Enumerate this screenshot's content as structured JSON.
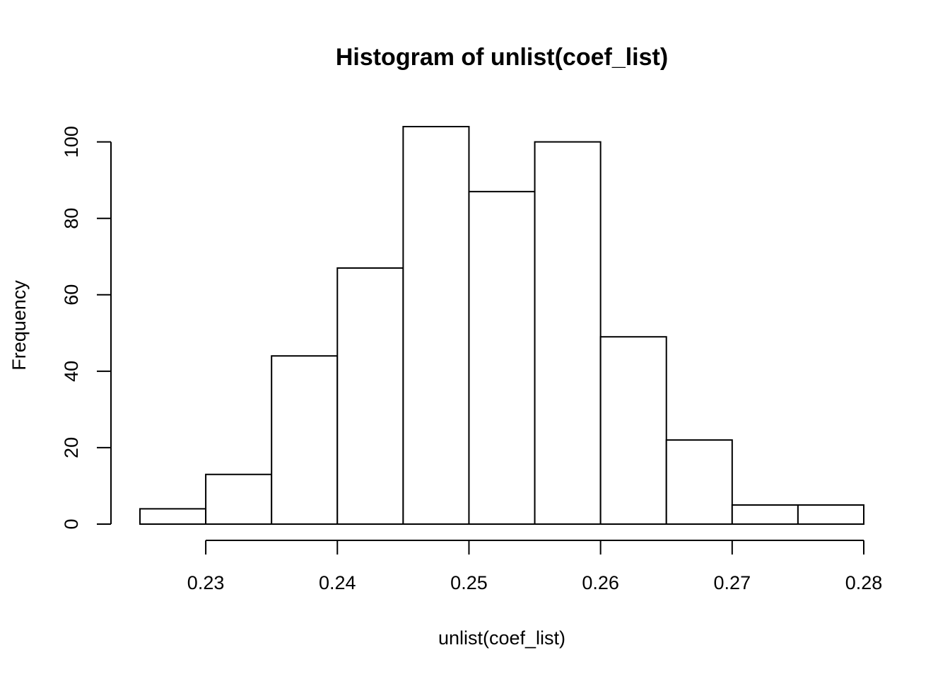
{
  "chart_data": {
    "type": "bar",
    "title": "Histogram of unlist(coef_list)",
    "xlabel": "unlist(coef_list)",
    "ylabel": "Frequency",
    "bins": [
      {
        "start": 0.225,
        "end": 0.23,
        "count": 4
      },
      {
        "start": 0.23,
        "end": 0.235,
        "count": 13
      },
      {
        "start": 0.235,
        "end": 0.24,
        "count": 44
      },
      {
        "start": 0.24,
        "end": 0.245,
        "count": 67
      },
      {
        "start": 0.245,
        "end": 0.25,
        "count": 104
      },
      {
        "start": 0.25,
        "end": 0.255,
        "count": 87
      },
      {
        "start": 0.255,
        "end": 0.26,
        "count": 100
      },
      {
        "start": 0.26,
        "end": 0.265,
        "count": 49
      },
      {
        "start": 0.265,
        "end": 0.27,
        "count": 22
      },
      {
        "start": 0.27,
        "end": 0.275,
        "count": 5
      },
      {
        "start": 0.275,
        "end": 0.28,
        "count": 5
      }
    ],
    "x_ticks": [
      0.23,
      0.24,
      0.25,
      0.26,
      0.27,
      0.28
    ],
    "x_tick_labels": [
      "0.23",
      "0.24",
      "0.25",
      "0.26",
      "0.27",
      "0.28"
    ],
    "y_ticks": [
      0,
      20,
      40,
      60,
      80,
      100
    ],
    "y_tick_labels": [
      "0",
      "20",
      "40",
      "60",
      "80",
      "100"
    ],
    "xlim": [
      0.225,
      0.28
    ],
    "ylim": [
      0,
      104
    ],
    "grid": false,
    "legend": "none",
    "bar_fill": "#ffffff",
    "bar_stroke": "#000000"
  }
}
